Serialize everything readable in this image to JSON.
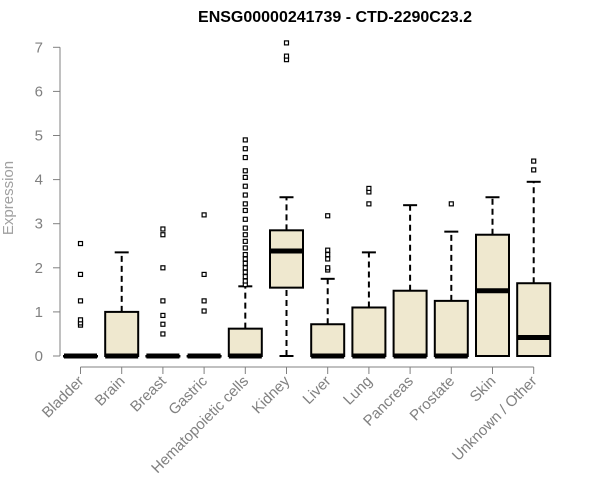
{
  "chart_data": {
    "type": "box",
    "title": "ENSG00000241739 - CTD-2290C23.2",
    "xlabel": "",
    "ylabel": "Expression",
    "ylim": [
      0,
      7.2
    ],
    "yticks": [
      0,
      1,
      2,
      3,
      4,
      5,
      6,
      7
    ],
    "grid": false,
    "box_fill": "#efe8cf",
    "box_stroke": "#000000",
    "categories": [
      "Bladder",
      "Brain",
      "Breast",
      "Gastric",
      "Hematopoietic cells",
      "Kidney",
      "Liver",
      "Lung",
      "Pancreas",
      "Prostate",
      "Skin",
      "Unknown / Other"
    ],
    "boxes": [
      {
        "q1": 0,
        "median": 0,
        "q3": 0,
        "whisker_low": 0,
        "whisker_high": 0,
        "outliers": [
          0.7,
          0.75,
          0.82,
          1.25,
          1.85,
          2.55
        ]
      },
      {
        "q1": 0,
        "median": 0,
        "q3": 1.0,
        "whisker_low": 0,
        "whisker_high": 2.35,
        "outliers": []
      },
      {
        "q1": 0,
        "median": 0,
        "q3": 0,
        "whisker_low": 0,
        "whisker_high": 0,
        "outliers": [
          0.5,
          0.72,
          0.92,
          1.25,
          2.0,
          2.75,
          2.88
        ]
      },
      {
        "q1": 0,
        "median": 0,
        "q3": 0,
        "whisker_low": 0,
        "whisker_high": 0,
        "outliers": [
          1.02,
          1.25,
          1.85,
          3.2
        ]
      },
      {
        "q1": 0,
        "median": 0,
        "q3": 0.62,
        "whisker_low": 0,
        "whisker_high": 1.58,
        "outliers": [
          1.62,
          1.7,
          1.8,
          1.9,
          2.0,
          2.1,
          2.2,
          2.3,
          2.45,
          2.6,
          2.75,
          2.9,
          3.1,
          3.3,
          3.45,
          3.65,
          3.85,
          4.05,
          4.2,
          4.5,
          4.7,
          4.9
        ]
      },
      {
        "q1": 1.55,
        "median": 2.38,
        "q3": 2.85,
        "whisker_low": 0,
        "whisker_high": 3.6,
        "outliers": [
          6.72,
          6.8,
          7.1
        ]
      },
      {
        "q1": 0,
        "median": 0,
        "q3": 0.72,
        "whisker_low": 0,
        "whisker_high": 1.75,
        "outliers": [
          1.95,
          2.0,
          2.2,
          2.3,
          2.4,
          3.18
        ]
      },
      {
        "q1": 0,
        "median": 0,
        "q3": 1.1,
        "whisker_low": 0,
        "whisker_high": 2.35,
        "outliers": [
          3.45,
          3.72,
          3.8
        ]
      },
      {
        "q1": 0,
        "median": 0,
        "q3": 1.48,
        "whisker_low": 0,
        "whisker_high": 3.42,
        "outliers": []
      },
      {
        "q1": 0,
        "median": 0,
        "q3": 1.25,
        "whisker_low": 0,
        "whisker_high": 2.82,
        "outliers": [
          3.45
        ]
      },
      {
        "q1": 0,
        "median": 1.48,
        "q3": 2.75,
        "whisker_low": 0,
        "whisker_high": 3.6,
        "outliers": []
      },
      {
        "q1": 0,
        "median": 0.42,
        "q3": 1.65,
        "whisker_low": 0,
        "whisker_high": 3.95,
        "outliers": [
          4.22,
          4.42
        ]
      }
    ]
  }
}
